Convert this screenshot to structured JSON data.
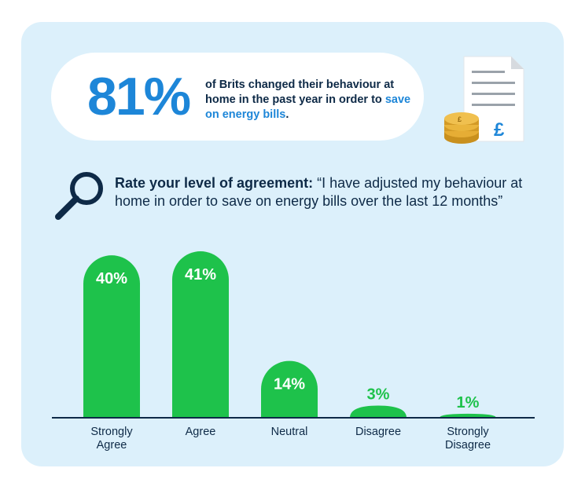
{
  "headline": {
    "stat": "81%",
    "text_main": "of Brits changed their behaviour at home in the past year in order to ",
    "text_highlight": "save on energy bills",
    "text_end": "."
  },
  "icons": {
    "document": "bill-document-icon",
    "coins": "coin-stack-icon",
    "currency": "£",
    "search": "magnifying-glass-icon"
  },
  "question": {
    "lead": "Rate your level of agreement:",
    "text": " “I have adjusted my behaviour at home in order to save on energy bills over the last 12 months”"
  },
  "colors": {
    "background": "#dcf0fb",
    "bar": "#1ec24b",
    "accent": "#1d86d8",
    "navy": "#0e2a47"
  },
  "chart_data": {
    "type": "bar",
    "categories": [
      [
        "Strongly",
        "Agree"
      ],
      [
        "Agree"
      ],
      [
        "Neutral"
      ],
      [
        "Disagree"
      ],
      [
        "Strongly",
        "Disagree"
      ]
    ],
    "values": [
      40,
      41,
      14,
      3,
      1
    ],
    "value_labels": [
      "40%",
      "41%",
      "14%",
      "3%",
      "1%"
    ],
    "ylim": [
      0,
      41
    ],
    "grid": false,
    "legend": "none"
  }
}
